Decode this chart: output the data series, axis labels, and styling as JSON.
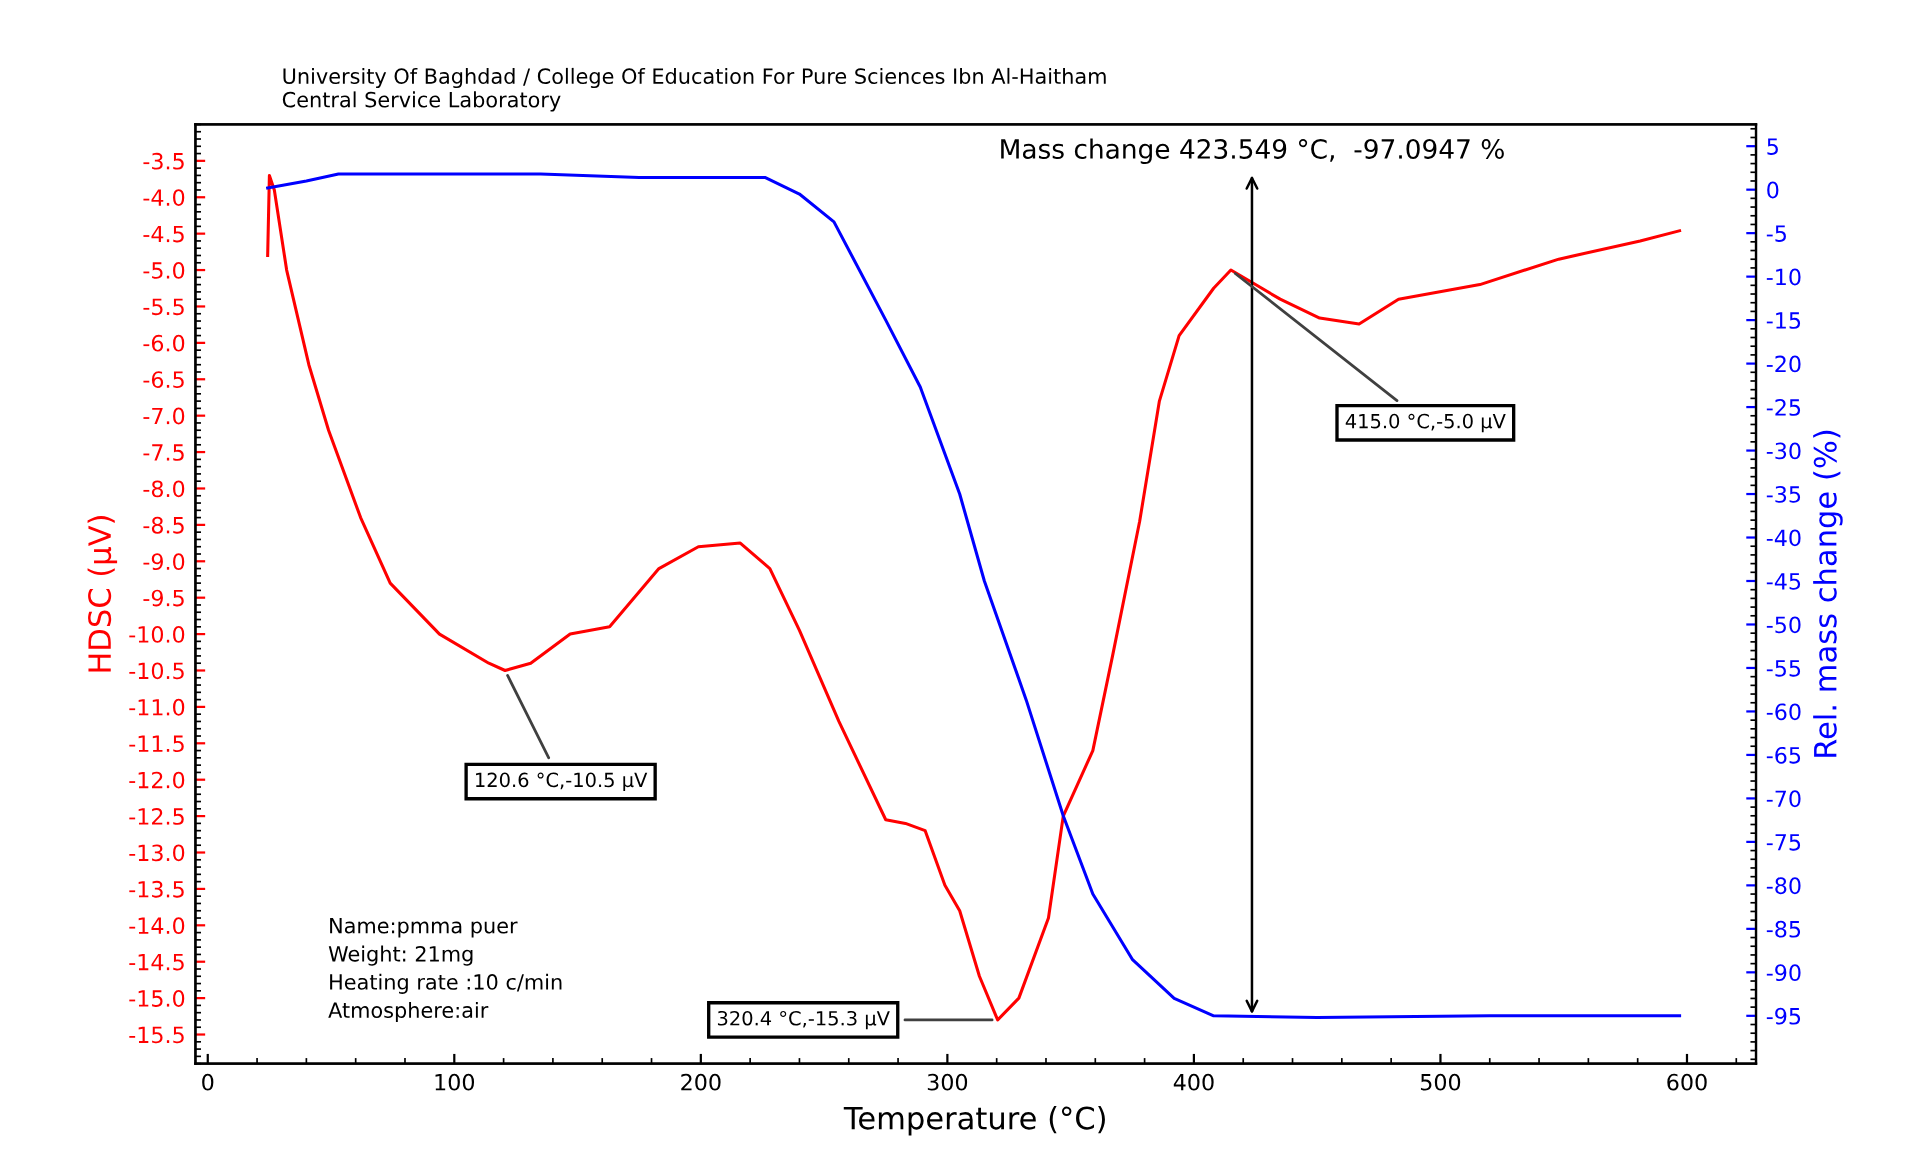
{
  "chart_data": {
    "type": "line",
    "title": "University Of Baghdad / College Of Education For Pure Sciences Ibn Al-Haitham",
    "subtitle": "Central Service Laboratory",
    "xlabel": "Temperature (°C)",
    "ylabel": "HDSC (µV)",
    "y2label": "Rel. mass change (%)",
    "xlim": [
      -5,
      628
    ],
    "xticks": [
      0,
      100,
      200,
      300,
      400,
      500,
      600
    ],
    "ylim": [
      -15.9,
      -3.0
    ],
    "yticks": [
      -3.5,
      {
        "value": -4,
        "label": "-4.0"
      },
      -4.5,
      {
        "value": -5,
        "label": "-5.0"
      },
      -5.5,
      {
        "value": -6,
        "label": "-6.0"
      },
      -6.5,
      {
        "value": -7,
        "label": "-7.0"
      },
      -7.5,
      {
        "value": -8,
        "label": "-8.0"
      },
      -8.5,
      {
        "value": -9,
        "label": "-9.0"
      },
      -9.5,
      {
        "value": -10,
        "label": "-10.0"
      },
      -10.5,
      {
        "value": -11,
        "label": "-11.0"
      },
      -11.5,
      {
        "value": -12,
        "label": "-12.0"
      },
      -12.5,
      {
        "value": -13,
        "label": "-13.0"
      },
      -13.5,
      {
        "value": -14,
        "label": "-14.0"
      },
      -14.5,
      {
        "value": -15,
        "label": "-15.0"
      },
      -15.5
    ],
    "y2lim": [
      -100.5,
      7.5
    ],
    "y2ticks": [
      5,
      0,
      -5,
      -10,
      -15,
      -20,
      -25,
      -30,
      -35,
      -40,
      -45,
      -50,
      -55,
      -60,
      -65,
      -70,
      -75,
      -80,
      -85,
      -90,
      -95
    ],
    "grid": false,
    "legend": false,
    "line_style": "solid",
    "marker": "none",
    "series": [
      {
        "color": "#ff0000",
        "x": [
          24.3,
          25,
          27,
          32,
          41,
          49,
          62,
          74,
          94,
          114,
          120.6,
          131,
          147,
          163,
          183,
          199,
          216,
          228,
          240,
          256,
          275,
          283,
          291,
          299,
          305,
          313,
          320.4,
          329,
          341,
          347,
          359,
          367,
          378,
          386,
          394,
          408,
          415,
          435,
          451,
          467,
          483,
          516,
          548,
          581,
          597
        ],
        "values": [
          -4.8,
          -3.7,
          -3.9,
          -5.0,
          -6.3,
          -7.2,
          -8.4,
          -9.3,
          -10.0,
          -10.4,
          -10.5,
          -10.4,
          -10.0,
          -9.9,
          -9.1,
          -8.8,
          -8.75,
          -9.1,
          -9.95,
          -11.2,
          -12.55,
          -12.6,
          -12.7,
          -13.45,
          -13.8,
          -14.7,
          -15.3,
          -15.0,
          -13.9,
          -12.5,
          -11.6,
          -10.3,
          -8.45,
          -6.8,
          -5.9,
          -5.25,
          -5.0,
          -5.4,
          -5.66,
          -5.74,
          -5.4,
          -5.2,
          -4.85,
          -4.6,
          -4.46
        ]
      },
      {
        "color": "#0000ff",
        "axis": "y2",
        "x": [
          24.3,
          40,
          53,
          100,
          135,
          175,
          200,
          226,
          240,
          254,
          275,
          289,
          305,
          315,
          332,
          347,
          359,
          375,
          392,
          408,
          450,
          520,
          597
        ],
        "values": [
          0.2,
          1.0,
          1.8,
          1.8,
          1.8,
          1.4,
          1.4,
          1.4,
          -0.5,
          -3.7,
          -15,
          -22.7,
          -35,
          -45,
          -58.7,
          -72,
          -81,
          -88.5,
          -93,
          -95,
          -95.2,
          -95,
          -95
        ]
      }
    ],
    "annotations": [
      {
        "text": "Mass change 423.549 °C,  -97.0947 %",
        "x": 423.549,
        "y": -15.22
      },
      {
        "text": "120.6 °C,-10.5 µV",
        "x": 120.6,
        "y": -10.5
      },
      {
        "text": "320.4 °C,-15.3 µV",
        "x": 320.4,
        "y": -15.3
      },
      {
        "text": "415.0 °C,-5.0 µV",
        "x": 415.0,
        "y": -5.0
      },
      "Name:pmma puer",
      "Weight: 21mg",
      "Heating rate :10 c/min",
      "Atmosphere:air"
    ]
  }
}
